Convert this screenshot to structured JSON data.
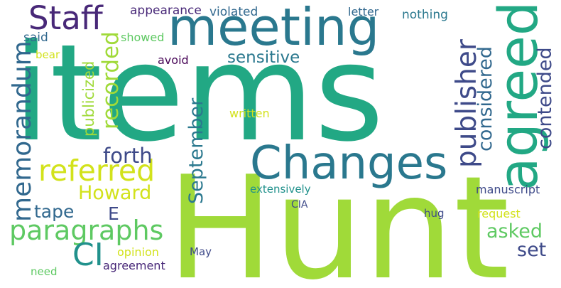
{
  "words": {
    "items": {
      "text": "items",
      "color": "#22a884"
    },
    "hunt": {
      "text": "Hunt",
      "color": "#a0da39"
    },
    "meeting": {
      "text": "meeting",
      "color": "#2a788e"
    },
    "agreed": {
      "text": "agreed",
      "color": "#22a884"
    },
    "changes": {
      "text": "Changes",
      "color": "#2a788e"
    },
    "staff": {
      "text": "Staff",
      "color": "#482878"
    },
    "publisher": {
      "text": "publisher",
      "color": "#3e4a89"
    },
    "memorandum": {
      "text": "memorandum",
      "color": "#31688e"
    },
    "referred": {
      "text": "referred",
      "color": "#d2e21b"
    },
    "paragraphs": {
      "text": "paragraphs",
      "color": "#5ec962"
    },
    "recorded": {
      "text": "recorded",
      "color": "#a0da39"
    },
    "september": {
      "text": "September",
      "color": "#2a788e"
    },
    "considered": {
      "text": "considered",
      "color": "#31688e"
    },
    "contended": {
      "text": "contended",
      "color": "#3e4a89"
    },
    "ci": {
      "text": "CI",
      "color": "#21918c"
    },
    "forth": {
      "text": "forth",
      "color": "#3e4a89"
    },
    "howard": {
      "text": "Howard",
      "color": "#d2e21b"
    },
    "tape": {
      "text": "tape",
      "color": "#31688e"
    },
    "asked": {
      "text": "asked",
      "color": "#5ec962"
    },
    "set": {
      "text": "set",
      "color": "#3e4a89"
    },
    "sensitive": {
      "text": "sensitive",
      "color": "#2a788e"
    },
    "publicized": {
      "text": "publicized",
      "color": "#a0da39"
    },
    "e": {
      "text": "E",
      "color": "#3e4a89"
    },
    "appearance": {
      "text": "appearance",
      "color": "#482878"
    },
    "violated": {
      "text": "violated",
      "color": "#31688e"
    },
    "letter": {
      "text": "letter",
      "color": "#31688e"
    },
    "nothing": {
      "text": "nothing",
      "color": "#2a788e"
    },
    "said": {
      "text": "said",
      "color": "#31688e"
    },
    "showed": {
      "text": "showed",
      "color": "#5ec962"
    },
    "bear": {
      "text": "bear",
      "color": "#d2e21b"
    },
    "avoid": {
      "text": "avoid",
      "color": "#440154"
    },
    "written": {
      "text": "written",
      "color": "#d2e21b"
    },
    "extensively": {
      "text": "extensively",
      "color": "#21918c"
    },
    "manuscript": {
      "text": "manuscript",
      "color": "#3e4a89"
    },
    "cia": {
      "text": "CIA",
      "color": "#3e4a89"
    },
    "hug": {
      "text": "hug",
      "color": "#3e4a89"
    },
    "request": {
      "text": "request",
      "color": "#d2e21b"
    },
    "opinion": {
      "text": "opinion",
      "color": "#d2e21b"
    },
    "may": {
      "text": "May",
      "color": "#3e4a89"
    },
    "need": {
      "text": "need",
      "color": "#5ec962"
    },
    "agreement": {
      "text": "agreement",
      "color": "#482878"
    }
  }
}
